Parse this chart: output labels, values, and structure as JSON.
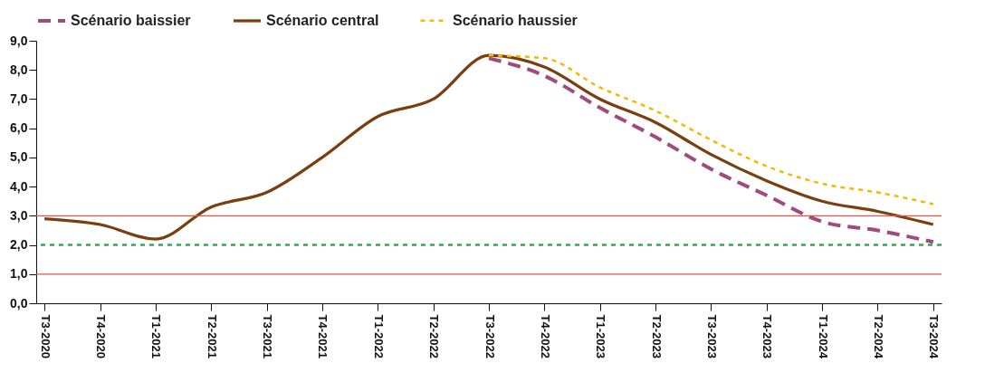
{
  "chart_data": {
    "type": "line",
    "categories": [
      "T3-2020",
      "T4-2020",
      "T1-2021",
      "T2-2021",
      "T3-2021",
      "T4-2021",
      "T1-2022",
      "T2-2022",
      "T3-2022",
      "T4-2022",
      "T1-2023",
      "T2-2023",
      "T3-2023",
      "T4-2023",
      "T1-2024",
      "T2-2024",
      "T3-2024"
    ],
    "series": [
      {
        "name": "Scénario baissier",
        "color": "#a04a7e",
        "line_style": "dashed",
        "values": [
          null,
          null,
          null,
          null,
          null,
          null,
          null,
          null,
          8.4,
          7.8,
          6.7,
          5.7,
          4.6,
          3.7,
          2.8,
          2.5,
          2.1
        ]
      },
      {
        "name": "Scénario central",
        "color": "#7a3f10",
        "line_style": "solid",
        "values": [
          2.9,
          2.7,
          2.2,
          3.3,
          3.8,
          5.0,
          6.4,
          7.0,
          8.5,
          8.1,
          7.0,
          6.2,
          5.1,
          4.2,
          3.5,
          3.15,
          2.7
        ]
      },
      {
        "name": "Scénario haussier",
        "color": "#f5b800",
        "line_style": "dotted",
        "values": [
          null,
          null,
          null,
          null,
          null,
          null,
          null,
          null,
          8.5,
          8.4,
          7.4,
          6.6,
          5.6,
          4.7,
          4.1,
          3.8,
          3.4
        ]
      }
    ],
    "ylim": [
      0,
      9
    ],
    "yticks": [
      {
        "value": 0,
        "label": "0,0"
      },
      {
        "value": 1,
        "label": "1,0"
      },
      {
        "value": 2,
        "label": "2,0"
      },
      {
        "value": 3,
        "label": "3,0"
      },
      {
        "value": 4,
        "label": "4,0"
      },
      {
        "value": 5,
        "label": "5,0"
      },
      {
        "value": 6,
        "label": "6,0"
      },
      {
        "value": 7,
        "label": "7,0"
      },
      {
        "value": 8,
        "label": "8,0"
      },
      {
        "value": 9,
        "label": "9,0"
      }
    ],
    "ref_lines": [
      {
        "axis": "y",
        "value": 3,
        "color": "#e8534a",
        "line_style": "solid"
      },
      {
        "axis": "y",
        "value": 1,
        "color": "#e8534a",
        "line_style": "solid"
      },
      {
        "axis": "y",
        "value": 2,
        "color": "#2eaa55",
        "line_style": "dotted"
      }
    ],
    "grid": false,
    "legend": "top left"
  }
}
